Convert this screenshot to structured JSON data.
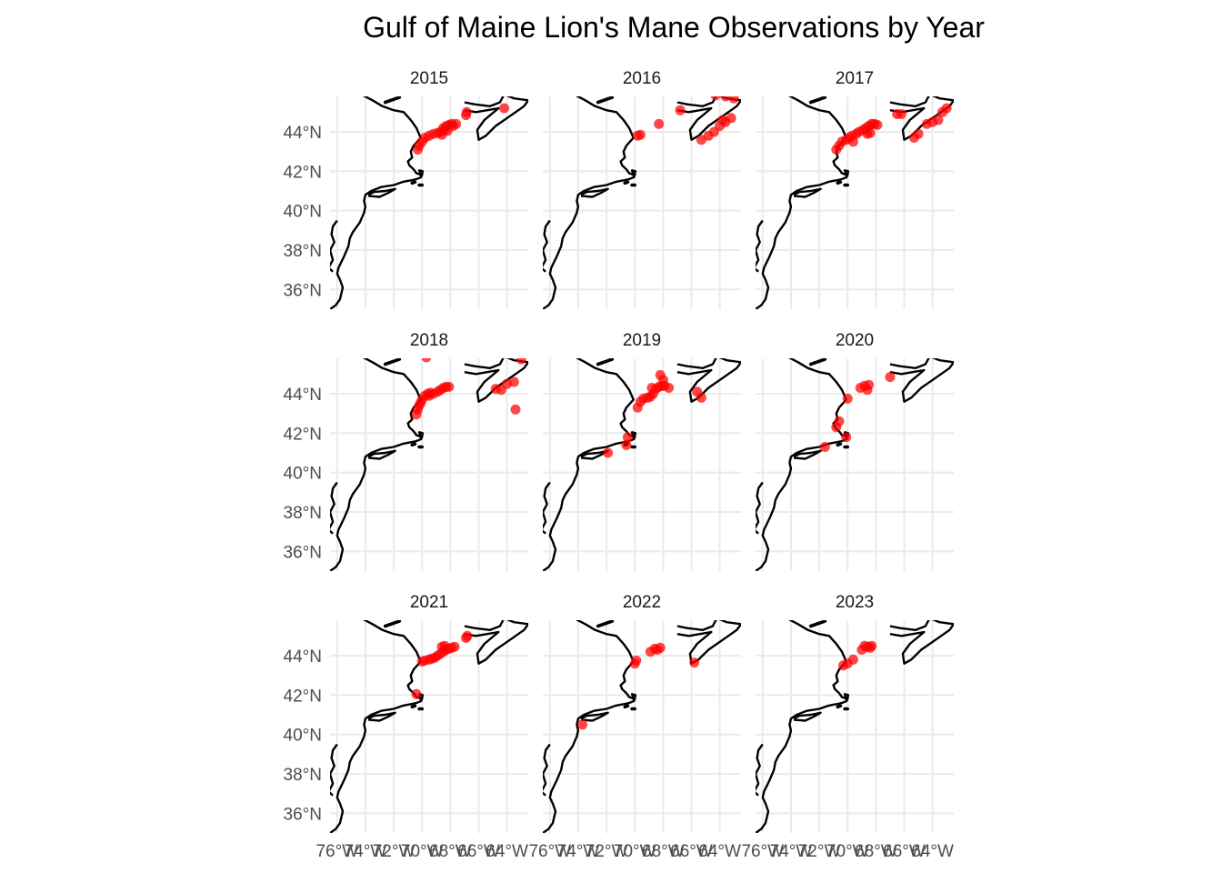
{
  "title": "Gulf of Maine Lion's Mane Observations by Year",
  "colors": {
    "point": "#ff0000",
    "coast": "#000000",
    "grid": "#ebebeb",
    "tick_text": "#4d4d4d"
  },
  "chart_data": {
    "type": "scatter",
    "facet": "year",
    "facet_layout": {
      "rows": 3,
      "cols": 3
    },
    "projection": "map",
    "grid": true,
    "xlim": [
      -76.5,
      -62.5
    ],
    "ylim": [
      35.0,
      45.8
    ],
    "x_ticks": [
      -76,
      -74,
      -72,
      -70,
      -68,
      -66,
      -64
    ],
    "x_tick_labels": [
      "76°W",
      "74°W",
      "72°W",
      "70°W",
      "68°W",
      "66°W",
      "64°W"
    ],
    "y_ticks": [
      36,
      38,
      40,
      42,
      44
    ],
    "y_tick_labels": [
      "36°N",
      "38°N",
      "40°N",
      "42°N",
      "44°N"
    ],
    "coastline": [
      [
        -74.3,
        45.9
      ],
      [
        -73.5,
        45.6
      ],
      [
        -72.8,
        45.3
      ],
      [
        -72.0,
        45.1
      ],
      [
        -71.3,
        45.0
      ],
      [
        -70.8,
        44.6
      ],
      [
        -70.4,
        44.2
      ],
      [
        -70.1,
        43.7
      ],
      [
        -70.6,
        43.3
      ],
      [
        -70.8,
        43.0
      ],
      [
        -70.7,
        42.7
      ],
      [
        -71.0,
        42.5
      ],
      [
        -70.9,
        42.3
      ],
      [
        -70.6,
        42.1
      ],
      [
        -70.4,
        41.9
      ],
      [
        -70.0,
        41.8
      ],
      [
        -69.96,
        42.0
      ],
      [
        -70.2,
        42.05
      ],
      [
        -70.05,
        41.7
      ],
      [
        -70.4,
        41.6
      ],
      [
        -70.7,
        41.55
      ],
      [
        -71.1,
        41.5
      ],
      [
        -71.4,
        41.45
      ],
      [
        -72.0,
        41.3
      ],
      [
        -72.9,
        41.2
      ],
      [
        -73.6,
        41.0
      ],
      [
        -74.0,
        40.8
      ],
      [
        -74.1,
        40.5
      ],
      [
        -74.0,
        40.2
      ],
      [
        -74.1,
        39.9
      ],
      [
        -74.4,
        39.4
      ],
      [
        -74.9,
        38.9
      ],
      [
        -75.1,
        38.6
      ],
      [
        -75.2,
        38.2
      ],
      [
        -75.5,
        37.7
      ],
      [
        -75.9,
        37.1
      ],
      [
        -76.0,
        36.8
      ],
      [
        -75.8,
        36.5
      ],
      [
        -75.6,
        36.1
      ],
      [
        -75.8,
        35.5
      ],
      [
        -76.1,
        35.2
      ],
      [
        -76.5,
        35.0
      ]
    ],
    "chesapeake": [
      [
        -76.0,
        39.5
      ],
      [
        -76.3,
        39.2
      ],
      [
        -76.4,
        38.8
      ],
      [
        -76.2,
        38.4
      ],
      [
        -76.5,
        38.0
      ],
      [
        -76.3,
        37.5
      ],
      [
        -76.6,
        37.1
      ],
      [
        -76.3,
        36.9
      ]
    ],
    "long_island": [
      [
        -73.8,
        40.75
      ],
      [
        -73.0,
        40.7
      ],
      [
        -72.4,
        40.9
      ],
      [
        -71.9,
        41.1
      ],
      [
        -72.6,
        41.0
      ],
      [
        -73.4,
        40.95
      ],
      [
        -73.8,
        40.8
      ]
    ],
    "nova_scotia": [
      [
        -67.0,
        45.5
      ],
      [
        -66.3,
        45.4
      ],
      [
        -65.2,
        45.3
      ],
      [
        -64.5,
        45.5
      ],
      [
        -64.2,
        45.9
      ],
      [
        -63.5,
        45.7
      ],
      [
        -62.5,
        45.6
      ],
      [
        -62.8,
        45.3
      ],
      [
        -63.8,
        44.8
      ],
      [
        -64.8,
        44.3
      ],
      [
        -65.5,
        43.8
      ],
      [
        -66.0,
        43.6
      ],
      [
        -66.1,
        44.1
      ],
      [
        -65.6,
        44.6
      ],
      [
        -64.6,
        45.2
      ],
      [
        -65.4,
        45.1
      ],
      [
        -66.2,
        45.0
      ],
      [
        -67.0,
        45.1
      ]
    ],
    "islands": [
      [
        [
          -72.6,
          45.5
        ],
        [
          -71.6,
          45.75
        ]
      ],
      [
        [
          -70.2,
          41.3
        ],
        [
          -70.0,
          41.3
        ]
      ],
      [
        [
          -70.7,
          41.4
        ],
        [
          -70.5,
          41.45
        ]
      ]
    ],
    "panels": [
      {
        "year": "2015",
        "points": [
          [
            -70.3,
            43.1
          ],
          [
            -70.2,
            43.3
          ],
          [
            -70.0,
            43.5
          ],
          [
            -69.8,
            43.7
          ],
          [
            -69.5,
            43.8
          ],
          [
            -69.2,
            43.9
          ],
          [
            -68.9,
            43.95
          ],
          [
            -68.7,
            44.0
          ],
          [
            -68.5,
            44.2
          ],
          [
            -68.3,
            44.3
          ],
          [
            -68.1,
            44.35
          ],
          [
            -67.9,
            44.4
          ],
          [
            -67.8,
            44.3
          ],
          [
            -67.6,
            44.4
          ],
          [
            -68.4,
            44.1
          ],
          [
            -68.2,
            44.05
          ],
          [
            -66.9,
            44.85
          ],
          [
            -66.85,
            45.0
          ],
          [
            -64.2,
            45.2
          ],
          [
            -68.6,
            43.85
          ]
        ]
      },
      {
        "year": "2016",
        "points": [
          [
            -69.8,
            43.8
          ],
          [
            -69.6,
            43.85
          ],
          [
            -68.3,
            44.4
          ],
          [
            -66.8,
            45.1
          ],
          [
            -64.3,
            45.85
          ],
          [
            -63.6,
            45.8
          ],
          [
            -63.0,
            45.7
          ],
          [
            -63.2,
            44.7
          ],
          [
            -63.6,
            44.5
          ],
          [
            -64.0,
            44.3
          ],
          [
            -64.4,
            44.0
          ],
          [
            -64.8,
            43.8
          ],
          [
            -65.3,
            43.6
          ],
          [
            -63.8,
            44.6
          ]
        ]
      },
      {
        "year": "2017",
        "points": [
          [
            -70.8,
            43.1
          ],
          [
            -70.6,
            43.3
          ],
          [
            -70.4,
            43.5
          ],
          [
            -70.1,
            43.6
          ],
          [
            -69.9,
            43.7
          ],
          [
            -69.7,
            43.8
          ],
          [
            -69.4,
            43.9
          ],
          [
            -69.2,
            44.0
          ],
          [
            -68.9,
            44.1
          ],
          [
            -68.7,
            44.2
          ],
          [
            -68.5,
            44.3
          ],
          [
            -68.3,
            44.4
          ],
          [
            -68.1,
            44.4
          ],
          [
            -67.9,
            44.35
          ],
          [
            -68.6,
            43.9
          ],
          [
            -68.4,
            43.95
          ],
          [
            -66.5,
            44.9
          ],
          [
            -66.2,
            44.9
          ],
          [
            -65.3,
            43.7
          ],
          [
            -65.0,
            43.9
          ],
          [
            -64.4,
            44.4
          ],
          [
            -64.0,
            44.5
          ],
          [
            -63.6,
            44.6
          ],
          [
            -63.3,
            45.0
          ],
          [
            -63.0,
            45.2
          ],
          [
            -69.6,
            43.5
          ]
        ]
      },
      {
        "year": "2018",
        "points": [
          [
            -70.4,
            42.95
          ],
          [
            -70.3,
            43.2
          ],
          [
            -70.2,
            43.4
          ],
          [
            -70.1,
            43.55
          ],
          [
            -70.0,
            43.7
          ],
          [
            -69.8,
            43.9
          ],
          [
            -69.6,
            44.0
          ],
          [
            -69.4,
            44.05
          ],
          [
            -69.2,
            44.0
          ],
          [
            -68.9,
            44.1
          ],
          [
            -68.7,
            44.2
          ],
          [
            -68.5,
            44.3
          ],
          [
            -68.3,
            44.35
          ],
          [
            -68.1,
            44.35
          ],
          [
            -69.5,
            43.9
          ],
          [
            -69.7,
            45.85
          ],
          [
            -63.4,
            43.2
          ],
          [
            -64.4,
            44.2
          ],
          [
            -64.0,
            44.5
          ],
          [
            -63.5,
            44.6
          ],
          [
            -64.8,
            44.25
          ],
          [
            -63.0,
            45.75
          ]
        ]
      },
      {
        "year": "2019",
        "points": [
          [
            -71.9,
            41.0
          ],
          [
            -70.6,
            41.4
          ],
          [
            -70.5,
            41.8
          ],
          [
            -69.8,
            43.3
          ],
          [
            -69.6,
            43.6
          ],
          [
            -69.4,
            43.75
          ],
          [
            -69.1,
            43.8
          ],
          [
            -68.9,
            43.85
          ],
          [
            -68.7,
            44.0
          ],
          [
            -68.5,
            44.25
          ],
          [
            -68.3,
            44.35
          ],
          [
            -68.1,
            44.4
          ],
          [
            -67.9,
            44.4
          ],
          [
            -67.6,
            44.3
          ],
          [
            -68.2,
            44.95
          ],
          [
            -68.0,
            44.7
          ],
          [
            -65.6,
            44.1
          ],
          [
            -65.3,
            43.8
          ],
          [
            -68.8,
            44.3
          ]
        ]
      },
      {
        "year": "2020",
        "points": [
          [
            -71.6,
            41.3
          ],
          [
            -70.8,
            42.3
          ],
          [
            -70.6,
            42.6
          ],
          [
            -70.1,
            41.8
          ],
          [
            -70.0,
            43.75
          ],
          [
            -69.1,
            44.3
          ],
          [
            -68.8,
            44.4
          ],
          [
            -68.6,
            44.2
          ],
          [
            -68.5,
            44.45
          ],
          [
            -67.0,
            44.85
          ]
        ]
      },
      {
        "year": "2021",
        "points": [
          [
            -70.4,
            42.05
          ],
          [
            -70.0,
            43.7
          ],
          [
            -69.8,
            43.75
          ],
          [
            -69.5,
            43.8
          ],
          [
            -69.3,
            43.85
          ],
          [
            -69.1,
            43.9
          ],
          [
            -68.9,
            44.0
          ],
          [
            -68.7,
            44.1
          ],
          [
            -68.5,
            44.2
          ],
          [
            -68.3,
            44.3
          ],
          [
            -68.1,
            44.35
          ],
          [
            -67.9,
            44.4
          ],
          [
            -67.7,
            44.45
          ],
          [
            -68.6,
            44.45
          ],
          [
            -68.4,
            44.5
          ],
          [
            -66.9,
            44.9
          ],
          [
            -66.8,
            45.0
          ]
        ]
      },
      {
        "year": "2022",
        "points": [
          [
            -73.7,
            40.5
          ],
          [
            -70.0,
            43.6
          ],
          [
            -69.9,
            43.75
          ],
          [
            -68.9,
            44.2
          ],
          [
            -68.6,
            44.35
          ],
          [
            -68.4,
            44.3
          ],
          [
            -68.2,
            44.4
          ],
          [
            -65.8,
            43.65
          ]
        ]
      },
      {
        "year": "2023",
        "points": [
          [
            -70.3,
            43.5
          ],
          [
            -70.0,
            43.6
          ],
          [
            -69.6,
            43.8
          ],
          [
            -69.0,
            44.3
          ],
          [
            -68.8,
            44.5
          ],
          [
            -68.6,
            44.45
          ],
          [
            -68.4,
            44.4
          ],
          [
            -68.3,
            44.5
          ]
        ]
      }
    ]
  }
}
